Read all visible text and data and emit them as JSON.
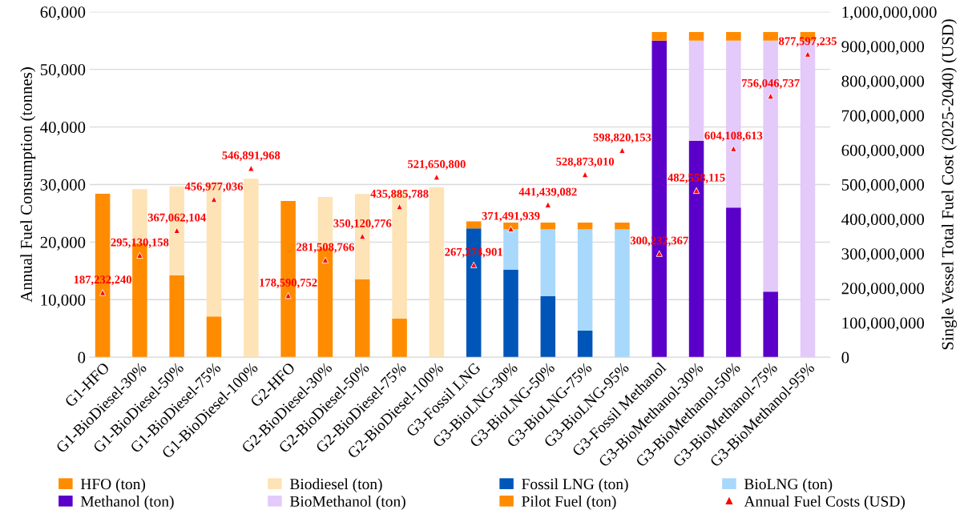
{
  "chart_data": {
    "type": "bar",
    "stacked": true,
    "categories": [
      "G1-HFO",
      "G1-BioDiesel-30%",
      "G1-BioDiesel-50%",
      "G1-BioDiesel-75%",
      "G1-BioDiesel-100%",
      "G2-HFO",
      "G2-BioDiesel-30%",
      "G2-BioDiesel-50%",
      "G2-BioDiesel-75%",
      "G2-BioDiesel-100%",
      "G3-Fossil LNG",
      "G3-BioLNG-30%",
      "G3-BioLNG-50%",
      "G3-BioLNG-75%",
      "G3-BioLNG-95%",
      "G3-Fossil Methanol",
      "G3-BioMethanol-30%",
      "G3-BioMethanol-50%",
      "G3-BioMethanol-75%",
      "G3-BioMethanol-95%"
    ],
    "series": [
      {
        "name": "HFO (ton)",
        "color": "#ff8c00",
        "values": [
          28400,
          19800,
          14200,
          7100,
          null,
          27150,
          18900,
          13500,
          6700,
          null,
          null,
          null,
          null,
          null,
          null,
          null,
          null,
          null,
          null,
          null
        ]
      },
      {
        "name": "Biodiesel (ton)",
        "color": "#fde3b5",
        "values": [
          null,
          9400,
          15500,
          23200,
          31000,
          null,
          8950,
          14850,
          22200,
          29550,
          null,
          null,
          null,
          null,
          null,
          null,
          null,
          null,
          null,
          null
        ]
      },
      {
        "name": "Fossil LNG (ton)",
        "color": "#0055b8",
        "values": [
          null,
          null,
          null,
          null,
          null,
          null,
          null,
          null,
          null,
          null,
          22400,
          15200,
          10600,
          4600,
          null,
          null,
          null,
          null,
          null,
          null
        ]
      },
      {
        "name": "BioLNG (ton)",
        "color": "#a8d8fc",
        "values": [
          null,
          null,
          null,
          null,
          null,
          null,
          null,
          null,
          null,
          null,
          null,
          7000,
          11600,
          17600,
          22200,
          null,
          null,
          null,
          null,
          null
        ]
      },
      {
        "name": "Methanol (ton)",
        "color": "#5a00c8",
        "values": [
          null,
          null,
          null,
          null,
          null,
          null,
          null,
          null,
          null,
          null,
          null,
          null,
          null,
          null,
          null,
          55000,
          37600,
          26000,
          11400,
          null
        ]
      },
      {
        "name": "BioMethanol (ton)",
        "color": "#e3cafa",
        "values": [
          null,
          null,
          null,
          null,
          null,
          null,
          null,
          null,
          null,
          null,
          null,
          null,
          null,
          null,
          null,
          null,
          17400,
          29000,
          43600,
          55000
        ]
      },
      {
        "name": "Pilot Fuel (ton)",
        "color": "#ff8c00",
        "values": [
          null,
          null,
          null,
          null,
          null,
          null,
          null,
          null,
          null,
          null,
          1200,
          1200,
          1200,
          1200,
          1200,
          1500,
          1500,
          1500,
          1500,
          1500
        ]
      },
      {
        "name": "Annual Fuel Costs (USD)",
        "type": "scatter",
        "axis": "y2",
        "color": "#ff0000",
        "marker": "triangle",
        "value_labels": [
          "187,232,240",
          "295,130,158",
          "367,062,104",
          "456,977,036",
          "546,891,968",
          "178,590,752",
          "281,508,766",
          "350,120,776",
          "435,885,788",
          "521,650,800",
          "267,274,901",
          "371,491,939",
          "441,439,082",
          "528,873,010",
          "598,820,153",
          "300,232,367",
          "482,558,115",
          "604,108,613",
          "756,046,737",
          "877,597,235"
        ],
        "values": [
          187232240,
          295130158,
          367062104,
          456977036,
          546891968,
          178590752,
          281508766,
          350120776,
          435885788,
          521650800,
          267274901,
          371491939,
          441439082,
          528873010,
          598820153,
          300232367,
          482558115,
          604108613,
          756046737,
          877597235
        ]
      }
    ],
    "ylabel": "Annual Fuel Consumption (tonnes)",
    "y2label": "Single Vessel Total Fuel Cost (2025-2040) (USD)",
    "ylim": [
      0,
      60000
    ],
    "yticks": [
      {
        "value": 0,
        "label": "0"
      },
      {
        "value": 10000,
        "label": "10,000"
      },
      {
        "value": 20000,
        "label": "20,000"
      },
      {
        "value": 30000,
        "label": "30,000"
      },
      {
        "value": 40000,
        "label": "40,000"
      },
      {
        "value": 50000,
        "label": "50,000"
      },
      {
        "value": 60000,
        "label": "60,000"
      }
    ],
    "y2lim": [
      0,
      1000000000
    ],
    "y2ticks": [
      {
        "value": 0,
        "label": "0"
      },
      {
        "value": 100000000,
        "label": "100,000,000"
      },
      {
        "value": 200000000,
        "label": "200,000,000"
      },
      {
        "value": 300000000,
        "label": "300,000,000"
      },
      {
        "value": 400000000,
        "label": "400,000,000"
      },
      {
        "value": 500000000,
        "label": "500,000,000"
      },
      {
        "value": 600000000,
        "label": "600,000,000"
      },
      {
        "value": 700000000,
        "label": "700,000,000"
      },
      {
        "value": 800000000,
        "label": "800,000,000"
      },
      {
        "value": 900000000,
        "label": "900,000,000"
      },
      {
        "value": 1000000000,
        "label": "1,000,000,000"
      }
    ],
    "grid": "y",
    "legend": "bottom"
  }
}
